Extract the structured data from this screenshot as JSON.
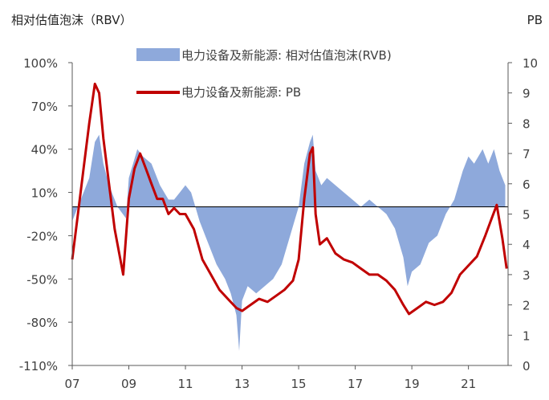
{
  "chart_data": {
    "type": "area+line",
    "left_axis_title": "相对估值泡沫（RBV）",
    "right_axis_title": "PB",
    "left_ylim": [
      -110,
      100
    ],
    "left_ticks": [
      "100%",
      "70%",
      "40%",
      "10%",
      "-20%",
      "-50%",
      "-80%",
      "-110%"
    ],
    "left_tick_values": [
      100,
      70,
      40,
      10,
      -20,
      -50,
      -80,
      -110
    ],
    "right_ylim": [
      0,
      10
    ],
    "right_ticks": [
      "10",
      "9",
      "8",
      "7",
      "6",
      "5",
      "4",
      "3",
      "2",
      "1",
      "0"
    ],
    "right_tick_values": [
      10,
      9,
      8,
      7,
      6,
      5,
      4,
      3,
      2,
      1,
      0
    ],
    "x_ticks": [
      "07",
      "09",
      "11",
      "13",
      "15",
      "17",
      "19",
      "21"
    ],
    "x_tick_values": [
      2007,
      2009,
      2011,
      2013,
      2015,
      2017,
      2019,
      2021
    ],
    "xlim": [
      2007,
      2022.4
    ],
    "series": [
      {
        "name": "电力设备及新能源: 相对估值泡沫(RVB)",
        "kind": "area",
        "axis": "left",
        "color": "#8EA9DB",
        "x": [
          2007.0,
          2007.3,
          2007.6,
          2007.8,
          2007.95,
          2008.1,
          2008.3,
          2008.6,
          2008.9,
          2009.0,
          2009.3,
          2009.5,
          2009.8,
          2010.1,
          2010.4,
          2010.6,
          2010.8,
          2011.0,
          2011.2,
          2011.5,
          2011.8,
          2012.1,
          2012.4,
          2012.6,
          2012.8,
          2012.9,
          2013.0,
          2013.2,
          2013.5,
          2013.8,
          2014.1,
          2014.4,
          2014.7,
          2015.0,
          2015.2,
          2015.4,
          2015.5,
          2015.6,
          2015.8,
          2016.0,
          2016.3,
          2016.6,
          2016.9,
          2017.2,
          2017.5,
          2017.8,
          2018.1,
          2018.4,
          2018.7,
          2018.85,
          2019.0,
          2019.3,
          2019.6,
          2019.9,
          2020.2,
          2020.5,
          2020.8,
          2021.0,
          2021.2,
          2021.5,
          2021.7,
          2021.9,
          2022.1,
          2022.3
        ],
        "values": [
          -10,
          5,
          20,
          45,
          50,
          30,
          15,
          0,
          -8,
          20,
          40,
          35,
          30,
          15,
          5,
          5,
          10,
          15,
          10,
          -10,
          -25,
          -40,
          -50,
          -60,
          -75,
          -100,
          -65,
          -55,
          -60,
          -55,
          -50,
          -40,
          -20,
          0,
          30,
          45,
          50,
          25,
          15,
          20,
          15,
          10,
          5,
          0,
          5,
          0,
          -5,
          -15,
          -35,
          -55,
          -45,
          -40,
          -25,
          -20,
          -5,
          5,
          25,
          35,
          30,
          40,
          30,
          40,
          25,
          15
        ]
      },
      {
        "name": "电力设备及新能源: PB",
        "kind": "line",
        "axis": "right",
        "color": "#C00000",
        "x": [
          2007.0,
          2007.2,
          2007.4,
          2007.6,
          2007.8,
          2007.95,
          2008.1,
          2008.3,
          2008.5,
          2008.8,
          2009.0,
          2009.2,
          2009.4,
          2009.6,
          2009.8,
          2010.0,
          2010.2,
          2010.4,
          2010.6,
          2010.8,
          2011.0,
          2011.3,
          2011.6,
          2011.9,
          2012.2,
          2012.5,
          2012.8,
          2013.0,
          2013.3,
          2013.6,
          2013.9,
          2014.2,
          2014.5,
          2014.8,
          2015.0,
          2015.2,
          2015.4,
          2015.5,
          2015.6,
          2015.75,
          2016.0,
          2016.3,
          2016.6,
          2016.9,
          2017.2,
          2017.5,
          2017.8,
          2018.1,
          2018.4,
          2018.7,
          2018.9,
          2019.2,
          2019.5,
          2019.8,
          2020.1,
          2020.4,
          2020.7,
          2021.0,
          2021.3,
          2021.6,
          2021.8,
          2022.0,
          2022.2,
          2022.35
        ],
        "values": [
          3.5,
          5.0,
          6.5,
          8.0,
          9.3,
          9.0,
          7.5,
          6.0,
          4.5,
          3.0,
          5.5,
          6.5,
          7.0,
          6.5,
          6.0,
          5.5,
          5.5,
          5.0,
          5.2,
          5.0,
          5.0,
          4.5,
          3.5,
          3.0,
          2.5,
          2.2,
          1.9,
          1.8,
          2.0,
          2.2,
          2.1,
          2.3,
          2.5,
          2.8,
          3.5,
          5.5,
          7.0,
          7.2,
          5.0,
          4.0,
          4.2,
          3.7,
          3.5,
          3.4,
          3.2,
          3.0,
          3.0,
          2.8,
          2.5,
          2.0,
          1.7,
          1.9,
          2.1,
          2.0,
          2.1,
          2.4,
          3.0,
          3.3,
          3.6,
          4.3,
          4.8,
          5.3,
          4.2,
          3.2
        ]
      }
    ],
    "zero_line": {
      "value": 0,
      "axis": "left",
      "color": "#000000"
    },
    "legend_placement": "top-center",
    "grid": false
  }
}
